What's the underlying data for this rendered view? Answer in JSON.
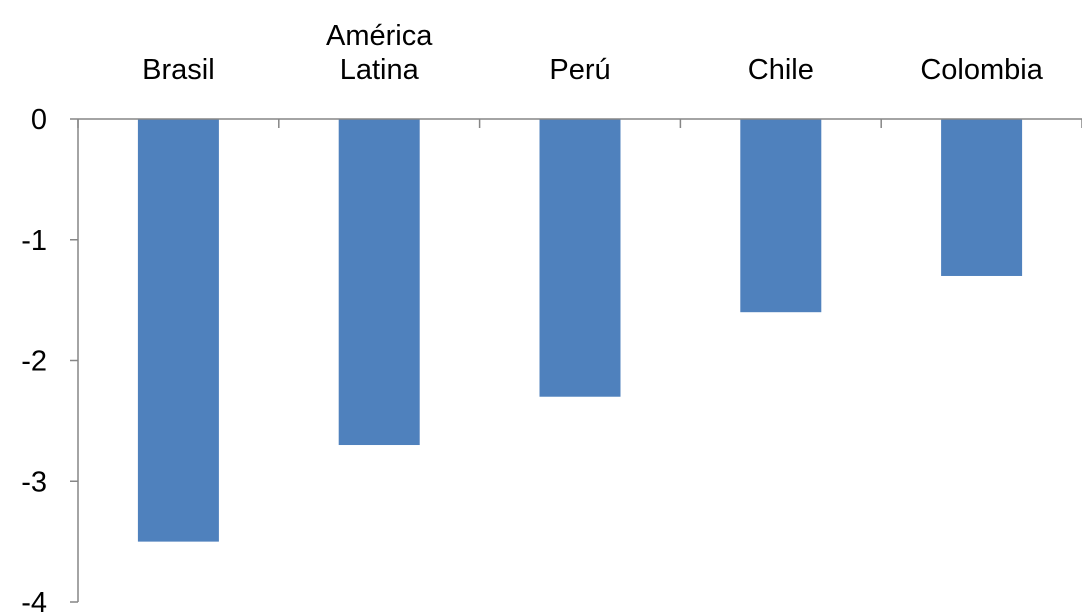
{
  "chart_data": {
    "type": "bar",
    "title": "",
    "xlabel": "",
    "ylabel": "",
    "categories": [
      [
        "Brasil"
      ],
      [
        "América",
        "Latina"
      ],
      [
        "Perú"
      ],
      [
        "Chile"
      ],
      [
        "Colombia"
      ]
    ],
    "values": [
      -3.5,
      -2.7,
      -2.3,
      -1.6,
      -1.3
    ],
    "ylim": [
      -4,
      0
    ],
    "yticks": [
      "0",
      "-1",
      "-2",
      "-3",
      "-4"
    ],
    "ytick_values": [
      0,
      -1,
      -2,
      -3,
      -4
    ],
    "grid": false,
    "legend": "none",
    "x_axis_position": "top",
    "colors": {
      "bar": "#4f81bd",
      "axis": "#868686",
      "text": "#000000"
    }
  }
}
